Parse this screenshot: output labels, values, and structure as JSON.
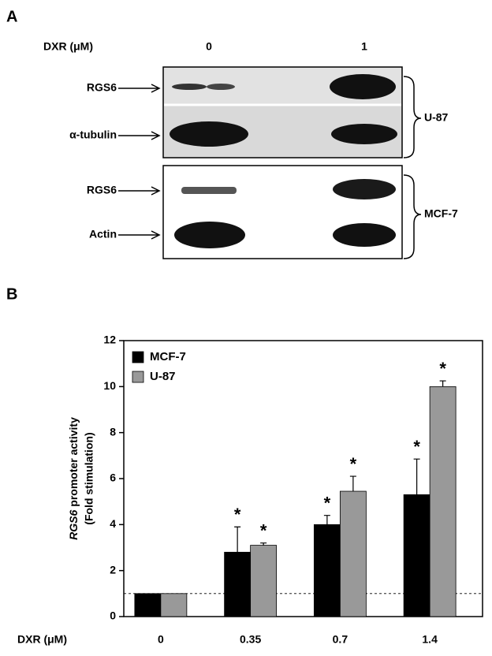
{
  "panel_a": {
    "panel_label": "A",
    "dose_label": "DXR (μM)",
    "doses": [
      "0",
      "1"
    ],
    "blots": [
      {
        "cell_line": "U-87",
        "rows": [
          "RGS6",
          "α-tubulin"
        ]
      },
      {
        "cell_line": "MCF-7",
        "rows": [
          "RGS6",
          "Actin"
        ]
      }
    ]
  },
  "chart_data": {
    "type": "bar",
    "panel_label": "B",
    "ylabel_gene": "RGS6",
    "ylabel": "promoter activity",
    "ylabel_line2": "(Fold stimulation)",
    "xlabel": "DXR (μM)",
    "categories": [
      "0",
      "0.35",
      "0.7",
      "1.4"
    ],
    "series": [
      {
        "name": "MCF-7",
        "color": "#000000",
        "values": [
          1,
          2.8,
          4.0,
          5.3
        ],
        "errors": [
          0,
          1.1,
          0.4,
          1.55
        ],
        "significant": [
          false,
          true,
          true,
          true
        ]
      },
      {
        "name": "U-87",
        "color": "#999999",
        "values": [
          1,
          3.1,
          5.45,
          10
        ],
        "errors": [
          0,
          0.1,
          0.65,
          0.25
        ],
        "significant": [
          false,
          true,
          true,
          true
        ]
      }
    ],
    "significance_marker": "*",
    "reference_line": 1,
    "ylim": [
      0,
      12
    ],
    "yticks": [
      0,
      2,
      4,
      6,
      8,
      10,
      12
    ],
    "legend": "top-left"
  }
}
